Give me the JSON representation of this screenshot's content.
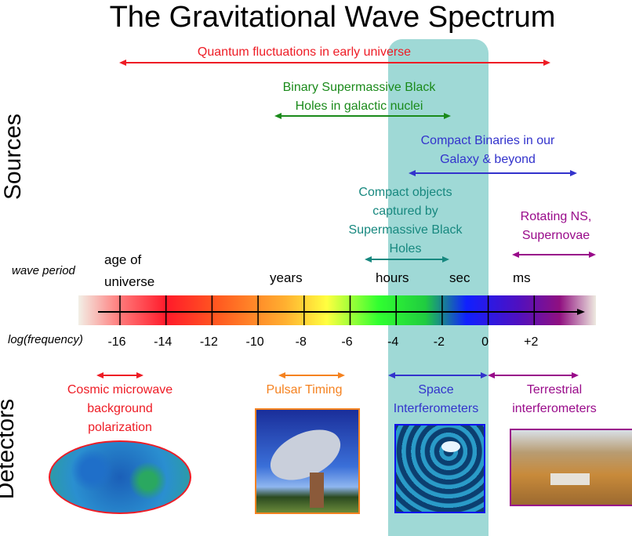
{
  "title": "The Gravitational Wave Spectrum",
  "side_labels": {
    "sources": "Sources",
    "detectors": "Detectors"
  },
  "sources": [
    {
      "lines": [
        "Quantum fluctuations in early universe"
      ],
      "color": "#ee1c25"
    },
    {
      "lines": [
        "Binary Supermassive Black",
        "Holes in galactic nuclei"
      ],
      "color": "#1a8a1a"
    },
    {
      "lines": [
        "Compact Binaries in our",
        "Galaxy & beyond"
      ],
      "color": "#3333cc"
    },
    {
      "lines": [
        "Compact objects",
        "captured by",
        "Supermassive Black",
        "Holes"
      ],
      "color": "#17887f"
    },
    {
      "lines": [
        "Rotating NS,",
        "Supernovae"
      ],
      "color": "#990a8a"
    }
  ],
  "axis": {
    "wave_period_label": "wave period",
    "log_frequency_label": "log(frequency)",
    "period_labels": [
      "age of",
      "universe",
      "years",
      "hours",
      "sec",
      "ms"
    ],
    "ticks": [
      "-16",
      "-14",
      "-12",
      "-10",
      "-8",
      "-6",
      "-4",
      "-2",
      "0",
      "+2"
    ]
  },
  "detectors": [
    {
      "lines": [
        "Cosmic microwave",
        "background",
        "polarization"
      ],
      "color": "#ee1c25",
      "image": "cmb-sky-map"
    },
    {
      "lines": [
        "Pulsar Timing"
      ],
      "color": "#f58220",
      "image": "radio-telescope"
    },
    {
      "lines": [
        "Space",
        "Interferometers"
      ],
      "color": "#3333cc",
      "image": "space-interferometer"
    },
    {
      "lines": [
        "Terrestrial",
        "interferometers"
      ],
      "color": "#990a8a",
      "image": "ground-observatory"
    }
  ]
}
